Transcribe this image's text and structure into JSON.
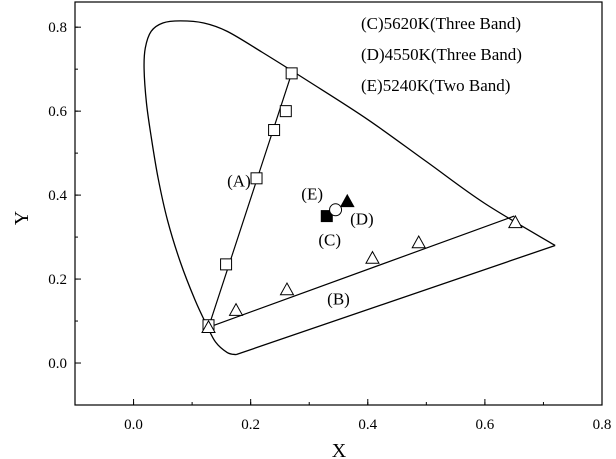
{
  "chart_data": {
    "type": "scatter",
    "title": "",
    "xlabel": "X",
    "ylabel": "Y",
    "xlim": [
      -0.1,
      0.8
    ],
    "ylim": [
      -0.1,
      0.86
    ],
    "x_ticks": [
      "0.0",
      "0.2",
      "0.4",
      "0.6",
      "0.8"
    ],
    "x_tick_values": [
      0.0,
      0.2,
      0.4,
      0.6,
      0.8
    ],
    "y_ticks": [
      "0.0",
      "0.2",
      "0.4",
      "0.6",
      "0.8"
    ],
    "y_tick_values": [
      0.0,
      0.2,
      0.4,
      0.6,
      0.8
    ],
    "grid": false,
    "legend_position": "top-right",
    "legend": [
      "(C)5620K(Three Band)",
      "(D)4550K(Three Band)",
      "(E)5240K(Two Band)"
    ],
    "spectral_locus": {
      "x": [
        0.175,
        0.16,
        0.14,
        0.125,
        0.105,
        0.08,
        0.058,
        0.042,
        0.03,
        0.022,
        0.018,
        0.02,
        0.03,
        0.05,
        0.08,
        0.12,
        0.16,
        0.22,
        0.3,
        0.4,
        0.5,
        0.6,
        0.72
      ],
      "y": [
        0.02,
        0.025,
        0.05,
        0.09,
        0.15,
        0.24,
        0.34,
        0.44,
        0.54,
        0.62,
        0.7,
        0.75,
        0.79,
        0.81,
        0.815,
        0.81,
        0.79,
        0.74,
        0.67,
        0.58,
        0.48,
        0.38,
        0.28
      ]
    },
    "purple_line": {
      "x": [
        0.175,
        0.72
      ],
      "y": [
        0.02,
        0.28
      ]
    },
    "series": [
      {
        "label": "(A)",
        "marker": "open-square",
        "connect": true,
        "color": "#000000",
        "x": [
          0.128,
          0.158,
          0.21,
          0.24,
          0.26,
          0.27
        ],
        "y": [
          0.09,
          0.235,
          0.44,
          0.555,
          0.6,
          0.69
        ]
      },
      {
        "label": "(B)",
        "marker": "open-triangle",
        "connect": false,
        "color": "#000000",
        "x": [
          0.128,
          0.175,
          0.262,
          0.408,
          0.487,
          0.652
        ],
        "y": [
          0.085,
          0.126,
          0.175,
          0.25,
          0.287,
          0.335
        ]
      },
      {
        "label": "(C)",
        "marker": "filled-square",
        "connect": false,
        "color": "#000000",
        "x": [
          0.33
        ],
        "y": [
          0.35
        ]
      },
      {
        "label": "(D)",
        "marker": "filled-triangle",
        "connect": false,
        "color": "#000000",
        "x": [
          0.365
        ],
        "y": [
          0.385
        ]
      },
      {
        "label": "(E)",
        "marker": "open-circle",
        "connect": false,
        "color": "#000000",
        "x": [
          0.345
        ],
        "y": [
          0.365
        ]
      }
    ],
    "lines": [
      {
        "x": [
          0.128,
          0.27
        ],
        "y": [
          0.085,
          0.69
        ]
      },
      {
        "x": [
          0.128,
          0.65
        ],
        "y": [
          0.085,
          0.35
        ]
      }
    ],
    "annotations": [
      {
        "text": "(A)",
        "x": 0.18,
        "y": 0.42
      },
      {
        "text": "(B)",
        "x": 0.35,
        "y": 0.14
      },
      {
        "text": "(C)",
        "x": 0.335,
        "y": 0.28
      },
      {
        "text": "(D)",
        "x": 0.39,
        "y": 0.33
      },
      {
        "text": "(E)",
        "x": 0.305,
        "y": 0.39
      }
    ]
  }
}
